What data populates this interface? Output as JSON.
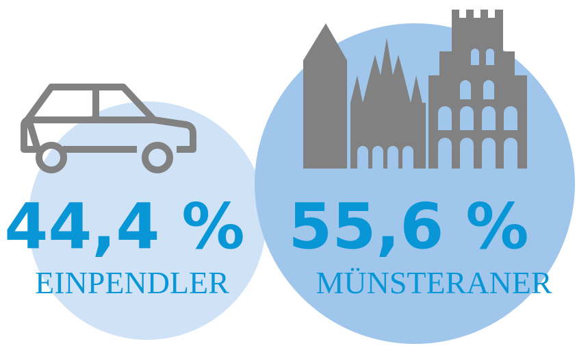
{
  "left": {
    "value": "44,4 %",
    "label": "EINPENDLER"
  },
  "right": {
    "value": "55,6 %",
    "label": "MÜNSTERANER"
  }
}
